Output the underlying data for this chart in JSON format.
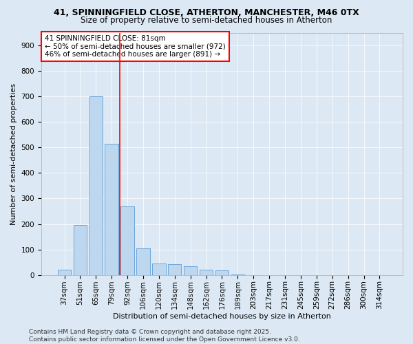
{
  "title_line1": "41, SPINNINGFIELD CLOSE, ATHERTON, MANCHESTER, M46 0TX",
  "title_line2": "Size of property relative to semi-detached houses in Atherton",
  "xlabel": "Distribution of semi-detached houses by size in Atherton",
  "ylabel": "Number of semi-detached properties",
  "categories": [
    "37sqm",
    "51sqm",
    "65sqm",
    "79sqm",
    "92sqm",
    "106sqm",
    "120sqm",
    "134sqm",
    "148sqm",
    "162sqm",
    "176sqm",
    "189sqm",
    "203sqm",
    "217sqm",
    "231sqm",
    "245sqm",
    "259sqm",
    "272sqm",
    "286sqm",
    "300sqm",
    "314sqm"
  ],
  "values": [
    20,
    197,
    700,
    515,
    270,
    105,
    45,
    42,
    35,
    20,
    18,
    3,
    0,
    0,
    0,
    0,
    0,
    0,
    0,
    0,
    0
  ],
  "bar_color": "#bdd7ee",
  "bar_edge_color": "#5b9bd5",
  "vline_x_index": 3,
  "vline_color": "red",
  "annotation_text": "41 SPINNINGFIELD CLOSE: 81sqm\n← 50% of semi-detached houses are smaller (972)\n46% of semi-detached houses are larger (891) →",
  "background_color": "#dce9f5",
  "ylim": [
    0,
    950
  ],
  "yticks": [
    0,
    100,
    200,
    300,
    400,
    500,
    600,
    700,
    800,
    900
  ],
  "footer_text": "Contains HM Land Registry data © Crown copyright and database right 2025.\nContains public sector information licensed under the Open Government Licence v3.0.",
  "title_fontsize": 9,
  "subtitle_fontsize": 8.5,
  "axis_label_fontsize": 8,
  "tick_fontsize": 7.5,
  "annotation_fontsize": 7.5,
  "footer_fontsize": 6.5,
  "ylabel_fontsize": 8
}
